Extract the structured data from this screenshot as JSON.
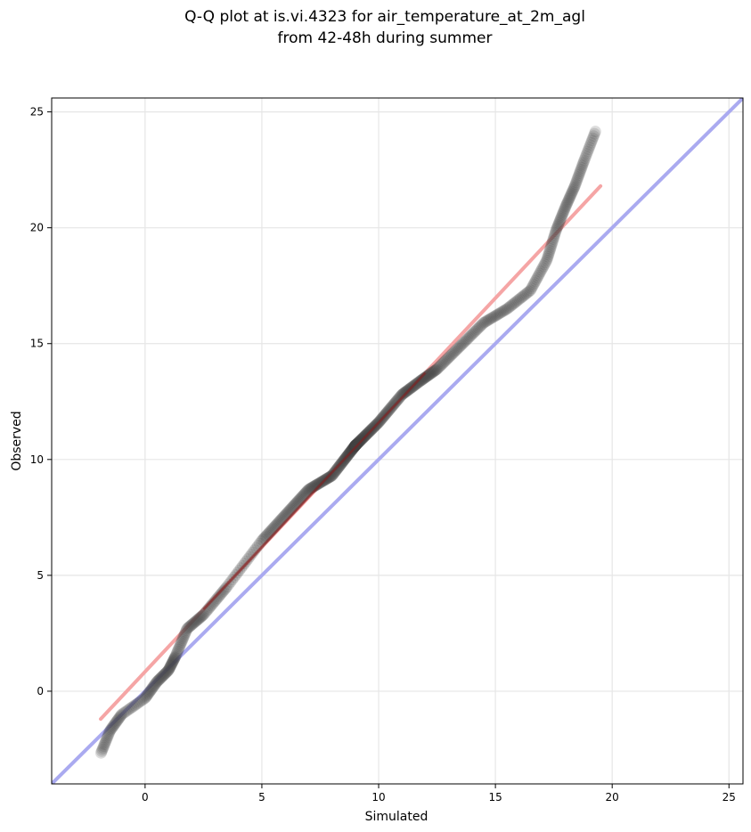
{
  "chart_data": {
    "type": "scatter",
    "title_lines": [
      "Q-Q plot at is.vi.4323 for air_temperature_at_2m_agl",
      "from 42-48h during summer"
    ],
    "xlabel": "Simulated",
    "ylabel": "Observed",
    "xlim": [
      -4.0,
      25.6
    ],
    "ylim": [
      -4.0,
      25.6
    ],
    "xticks": [
      0,
      5,
      10,
      15,
      20,
      25
    ],
    "yticks": [
      0,
      5,
      10,
      15,
      20,
      25
    ],
    "grid": true,
    "colors": {
      "points": "#404040",
      "identity_line": "#aaaaf0",
      "fit_line": "#f5a5a5",
      "fit_line_dark": "#8b1a1a",
      "grid": "#e6e6e6",
      "frame": "#000000"
    },
    "identity_line": {
      "x": [
        -4.0,
        25.6
      ],
      "y": [
        -4.0,
        25.6
      ]
    },
    "fit_line": {
      "x": [
        -1.9,
        19.5
      ],
      "y": [
        -1.2,
        21.8
      ]
    },
    "quantile_knots": {
      "x": [
        -1.9,
        -1.5,
        -1.0,
        0.0,
        0.5,
        1.0,
        1.3,
        1.8,
        2.5,
        3.5,
        5.0,
        6.0,
        7.0,
        8.0,
        9.0,
        10.0,
        11.0,
        11.8,
        12.5,
        13.5,
        14.5,
        15.5,
        16.5,
        17.2,
        17.6,
        18.0,
        18.4,
        18.8,
        19.3
      ],
      "y": [
        -2.7,
        -1.7,
        -1.0,
        -0.3,
        0.4,
        0.9,
        1.5,
        2.7,
        3.3,
        4.5,
        6.5,
        7.6,
        8.7,
        9.3,
        10.6,
        11.6,
        12.8,
        13.4,
        13.9,
        14.9,
        15.9,
        16.5,
        17.3,
        18.6,
        19.9,
        20.9,
        21.8,
        22.9,
        24.2
      ]
    },
    "n_points": 600
  }
}
